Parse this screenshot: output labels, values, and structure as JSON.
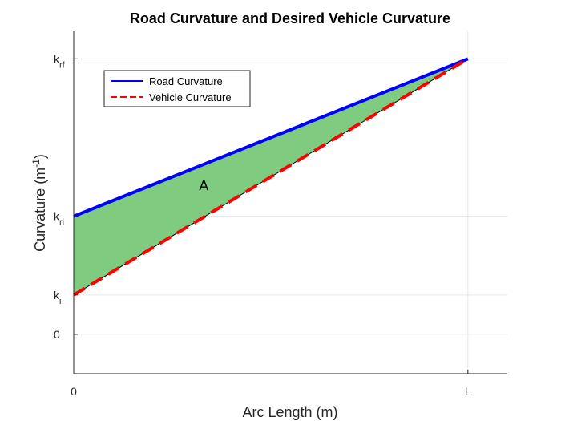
{
  "chart_data": {
    "type": "line",
    "title": "Road Curvature and Desired Vehicle Curvature",
    "xlabel": "Arc Length (m)",
    "ylabel": {
      "base": "Curvature (m",
      "sup": "-1",
      "tail": ")"
    },
    "x_ticks": [
      {
        "label": "0",
        "value": 0
      },
      {
        "label": "L",
        "value": 1
      }
    ],
    "y_ticks": [
      {
        "base": "0",
        "sub": "",
        "value": 0
      },
      {
        "base": "k",
        "sub": "i",
        "value": 0.5
      },
      {
        "base": "k",
        "sub": "ri",
        "value": 1.5
      },
      {
        "base": "k",
        "sub": "rf",
        "value": 3.5
      }
    ],
    "xlim": [
      0,
      1.1
    ],
    "ylim": [
      -0.5,
      3.85
    ],
    "grid": true,
    "legend_position": "top-left",
    "series": [
      {
        "name": "Road Curvature",
        "x": [
          0,
          1
        ],
        "y": [
          1.5,
          3.5
        ],
        "color": "#0000ff",
        "style": "solid"
      },
      {
        "name": "Vehicle Curvature",
        "x": [
          0,
          1
        ],
        "y": [
          0.5,
          3.5
        ],
        "color": "#ff0000",
        "style": "dashed"
      }
    ],
    "reference_line": {
      "x": [
        0,
        1
      ],
      "y": [
        0.5,
        3.5
      ],
      "color": "#000000"
    },
    "fill_between": {
      "color": "#7fcb7f",
      "label": "A"
    },
    "annotation": {
      "text": "A",
      "x": 0.33,
      "y": 1.83
    }
  }
}
